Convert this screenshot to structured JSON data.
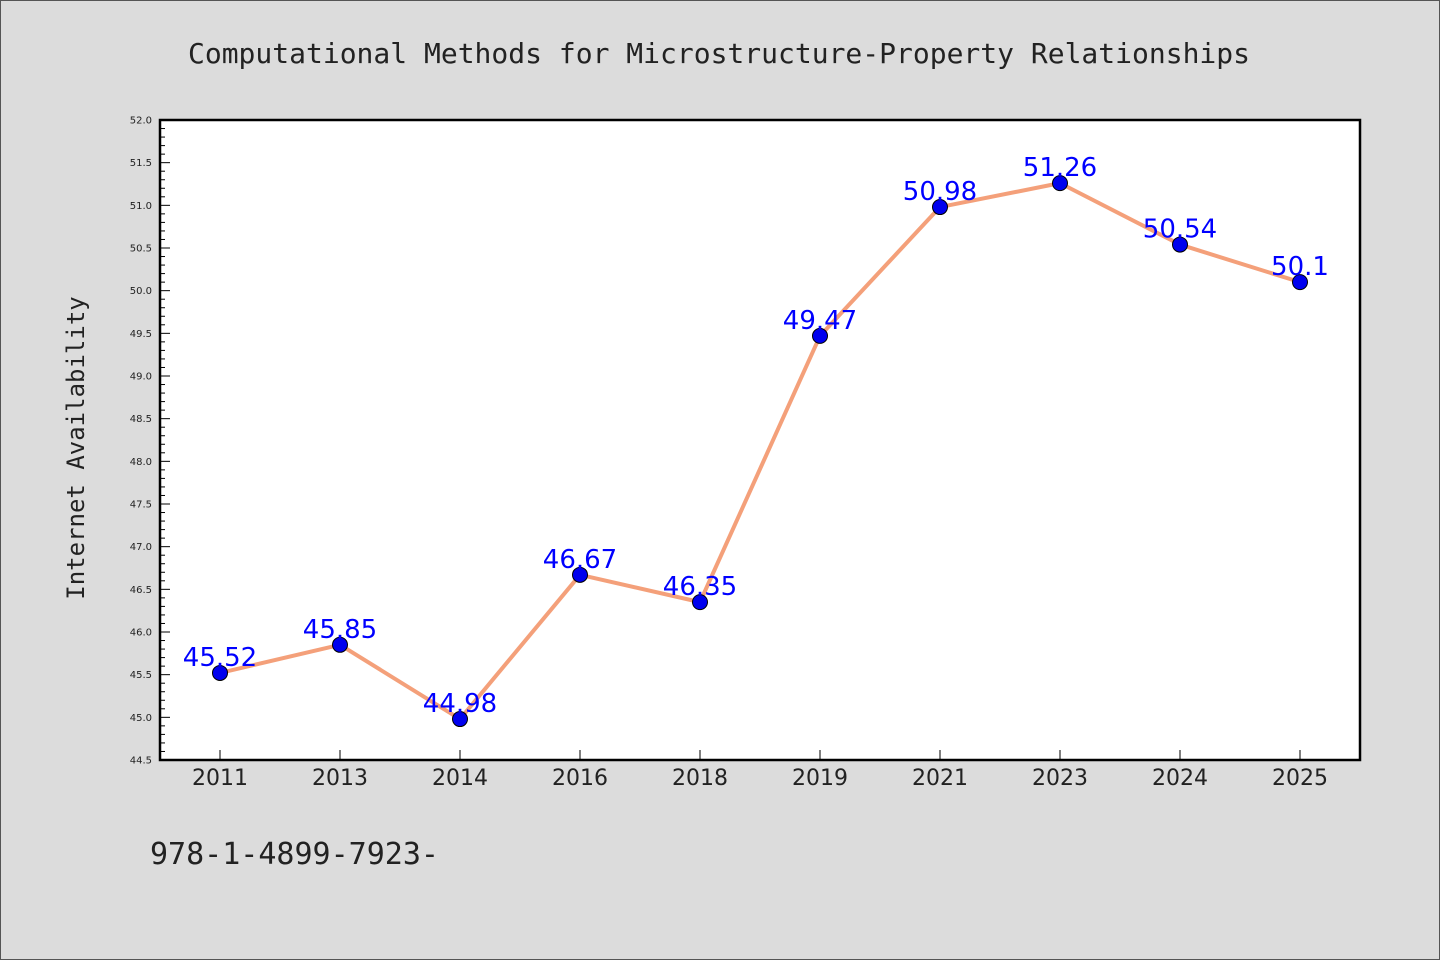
{
  "page": {
    "footer_text": "978-1-4899-7923-"
  },
  "chart_data": {
    "type": "line",
    "title": "Computational Methods for Microstructure-Property Relationships",
    "xlabel": "",
    "ylabel": "Internet Availability",
    "categories": [
      "2011",
      "2013",
      "2014",
      "2016",
      "2018",
      "2019",
      "2021",
      "2023",
      "2024",
      "2025"
    ],
    "series": [
      {
        "values": [
          45.52,
          45.85,
          44.98,
          46.67,
          46.35,
          49.47,
          50.98,
          51.26,
          50.54,
          50.1
        ],
        "labels": [
          "45.52",
          "45.85",
          "44.98",
          "46.67",
          "46.35",
          "49.47",
          "50.98",
          "51.26",
          "50.54",
          "50.1"
        ]
      }
    ],
    "ylim": [
      44.5,
      52.0
    ],
    "y_ticks": [
      "44.5",
      "45.0",
      "45.5",
      "46.0",
      "46.5",
      "47.0",
      "47.5",
      "48.0",
      "48.5",
      "49.0",
      "49.5",
      "50.0",
      "50.5",
      "51.0",
      "51.5",
      "52.0"
    ],
    "grid": false,
    "legend": "none",
    "colors": {
      "line": "#f4a07a",
      "marker": "#0000ee",
      "marker_edge": "#000000",
      "data_label": "#0000ff",
      "background": "#dcdcdc",
      "plot_background": "#ffffff",
      "axis": "#000000"
    }
  }
}
